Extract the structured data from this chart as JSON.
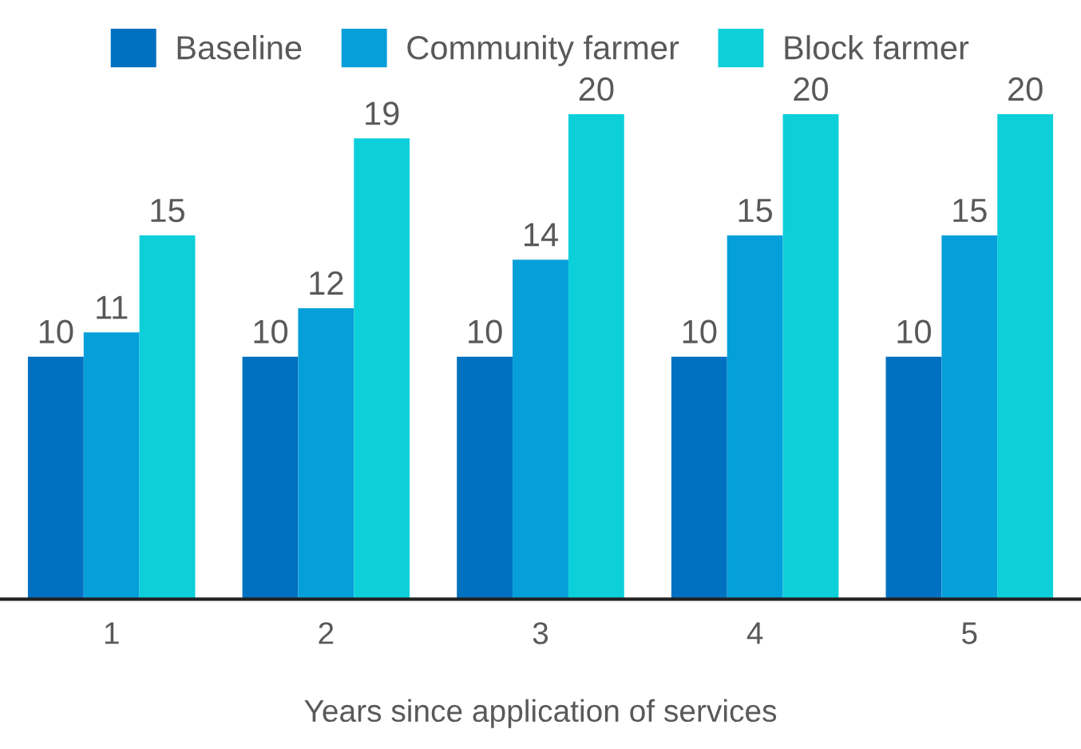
{
  "chart_data": {
    "type": "bar",
    "xlabel": "Years since application of services",
    "categories": [
      "1",
      "2",
      "3",
      "4",
      "5"
    ],
    "series": [
      {
        "name": "Baseline",
        "color": "#0070c0",
        "values": [
          10,
          10,
          10,
          10,
          10
        ]
      },
      {
        "name": "Community farmer",
        "color": "#059fd9",
        "values": [
          11,
          12,
          14,
          15,
          15
        ]
      },
      {
        "name": "Block farmer",
        "color": "#0ccfda",
        "values": [
          15,
          19,
          20,
          20,
          20
        ]
      }
    ],
    "data_labels": true,
    "legend": "top",
    "grid": false
  }
}
